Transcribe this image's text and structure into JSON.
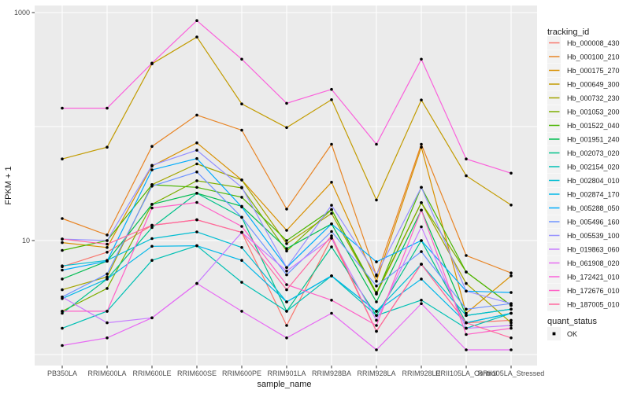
{
  "chart": {
    "panel_bg": "#EBEBEB",
    "grid_color": "#FFFFFF",
    "point_color": "#000000",
    "tick_color": "#333333",
    "tick_label_color": "#4D4D4D",
    "legend_key_bg": "#F2F2F2"
  },
  "axes": {
    "x": {
      "label": "sample_name"
    },
    "y": {
      "label": "FPKM + 1",
      "scale": "log10",
      "tick_labels": [
        "1000",
        "10"
      ],
      "tick_values": [
        1000,
        10
      ],
      "gridline_values": [
        1,
        10,
        100,
        1000
      ]
    }
  },
  "legend": {
    "tracking_title": "tracking_id",
    "quant_title": "quant_status",
    "quant_items": [
      {
        "label": "OK",
        "marker": "black-square-point"
      }
    ]
  },
  "chart_data": {
    "type": "line",
    "title": "",
    "xlabel": "sample_name",
    "ylabel": "FPKM + 1",
    "y_scale": "log10",
    "ylim": [
      0.8,
      1160
    ],
    "grid": "major-white-on-gray",
    "legend_position": "right",
    "point_marker": "black-dot-all-points",
    "x_categories": [
      "PB350LA",
      "RRIM600LA",
      "RRIM600LE",
      "RRIM600SE",
      "RRIM600PE",
      "RRIM901LA",
      "RRIM928BA",
      "RRIM928LA",
      "RRIM928LE",
      "RRII105LA_Control",
      "RRII105LA_Stressed"
    ],
    "series": [
      {
        "name": "Hb_000008_430",
        "color": "#F8766D",
        "values": [
          5.9,
          7.9,
          13.6,
          15.2,
          11.8,
          1.8,
          10.5,
          1.6,
          6.2,
          1.9,
          2.0
        ]
      },
      {
        "name": "Hb_000100_210",
        "color": "#E88526",
        "values": [
          15.6,
          11.2,
          67,
          126,
          93,
          18.9,
          70,
          4.9,
          70,
          7.4,
          5.2
        ]
      },
      {
        "name": "Hb_000175_270",
        "color": "#D89000",
        "values": [
          9.6,
          8.7,
          45,
          72,
          34,
          12.3,
          32.5,
          4.4,
          66,
          2.3,
          4.9
        ]
      },
      {
        "name": "Hb_000649_300",
        "color": "#C29B00",
        "values": [
          52,
          66,
          355,
          610,
          158,
          98,
          172,
          22.7,
          171,
          37,
          20.5
        ]
      },
      {
        "name": "Hb_000732_230",
        "color": "#A3A500",
        "values": [
          3.7,
          4.8,
          31,
          47,
          34,
          9.4,
          17.3,
          3.4,
          21.5,
          4.2,
          1.9
        ]
      },
      {
        "name": "Hb_001053_200",
        "color": "#7CAE00",
        "values": [
          2.4,
          3.8,
          20.8,
          33.5,
          29,
          8.1,
          18.7,
          3.5,
          21.5,
          5.3,
          2.7
        ]
      },
      {
        "name": "Hb_001522_040",
        "color": "#49B500",
        "values": [
          8.2,
          10,
          30.9,
          29.3,
          24,
          10,
          18.7,
          3.4,
          29.3,
          5.3,
          2.7
        ]
      },
      {
        "name": "Hb_001951_240",
        "color": "#00BC51",
        "values": [
          4.6,
          6.6,
          20.8,
          26,
          20,
          8.5,
          14,
          2.9,
          18.5,
          2.2,
          2.5
        ]
      },
      {
        "name": "Hb_002073_020",
        "color": "#00C08A",
        "values": [
          2.3,
          4.6,
          13,
          26,
          16,
          2.4,
          8.8,
          2.2,
          10,
          1.9,
          2.3
        ]
      },
      {
        "name": "Hb_002154_020",
        "color": "#00C0B4",
        "values": [
          1.7,
          2.4,
          6.7,
          9,
          4.3,
          2.4,
          4.9,
          2.2,
          3,
          1.7,
          2.3
        ]
      },
      {
        "name": "Hb_002804_010",
        "color": "#00BDD2",
        "values": [
          6,
          6.7,
          10.4,
          11.9,
          8.7,
          2.9,
          4.9,
          2.4,
          6.2,
          2.2,
          2.5
        ]
      },
      {
        "name": "Hb_002874_170",
        "color": "#00B7E8",
        "values": [
          3.1,
          4.6,
          8.9,
          9,
          6.7,
          2.9,
          4.9,
          2.4,
          4.6,
          1.9,
          2.3
        ]
      },
      {
        "name": "Hb_005288_050",
        "color": "#00ACFC",
        "values": [
          5.5,
          6.6,
          41.7,
          52.4,
          19.7,
          5.8,
          14,
          6.5,
          10,
          3.6,
          3.5
        ]
      },
      {
        "name": "Hb_005496_160",
        "color": "#6F94FF",
        "values": [
          3.2,
          5.1,
          30,
          40,
          16,
          5,
          12,
          4,
          8,
          2.5,
          2.8
        ]
      },
      {
        "name": "Hb_005539_100",
        "color": "#9590FF",
        "values": [
          10.3,
          10,
          45.7,
          62,
          29.3,
          5.8,
          20.4,
          5,
          29.3,
          3.6,
          2.8
        ]
      },
      {
        "name": "Hb_019863_060",
        "color": "#C77CFF",
        "values": [
          3.2,
          1.9,
          2.1,
          4.2,
          11.8,
          5.4,
          10.5,
          2,
          13.2,
          1.7,
          1.8
        ]
      },
      {
        "name": "Hb_061908_020",
        "color": "#E76BF3",
        "values": [
          1.2,
          1.4,
          2.1,
          4.2,
          2.4,
          1.4,
          2.3,
          1.1,
          2.8,
          1.1,
          1.1
        ]
      },
      {
        "name": "Hb_172421_010",
        "color": "#FA62DB",
        "values": [
          145,
          145,
          360,
          850,
          390,
          160,
          212,
          70,
          390,
          52,
          39
        ]
      },
      {
        "name": "Hb_172676_010",
        "color": "#FF61C7",
        "values": [
          2.4,
          2.4,
          19.3,
          21.6,
          13.3,
          4.1,
          3,
          1.8,
          18.5,
          1.5,
          1.7
        ]
      },
      {
        "name": "Hb_187005_010",
        "color": "#FF689E",
        "values": [
          10.3,
          9.3,
          13.6,
          15.2,
          11.8,
          3.7,
          11,
          1.6,
          6.2,
          1.9,
          1.4
        ]
      }
    ]
  }
}
